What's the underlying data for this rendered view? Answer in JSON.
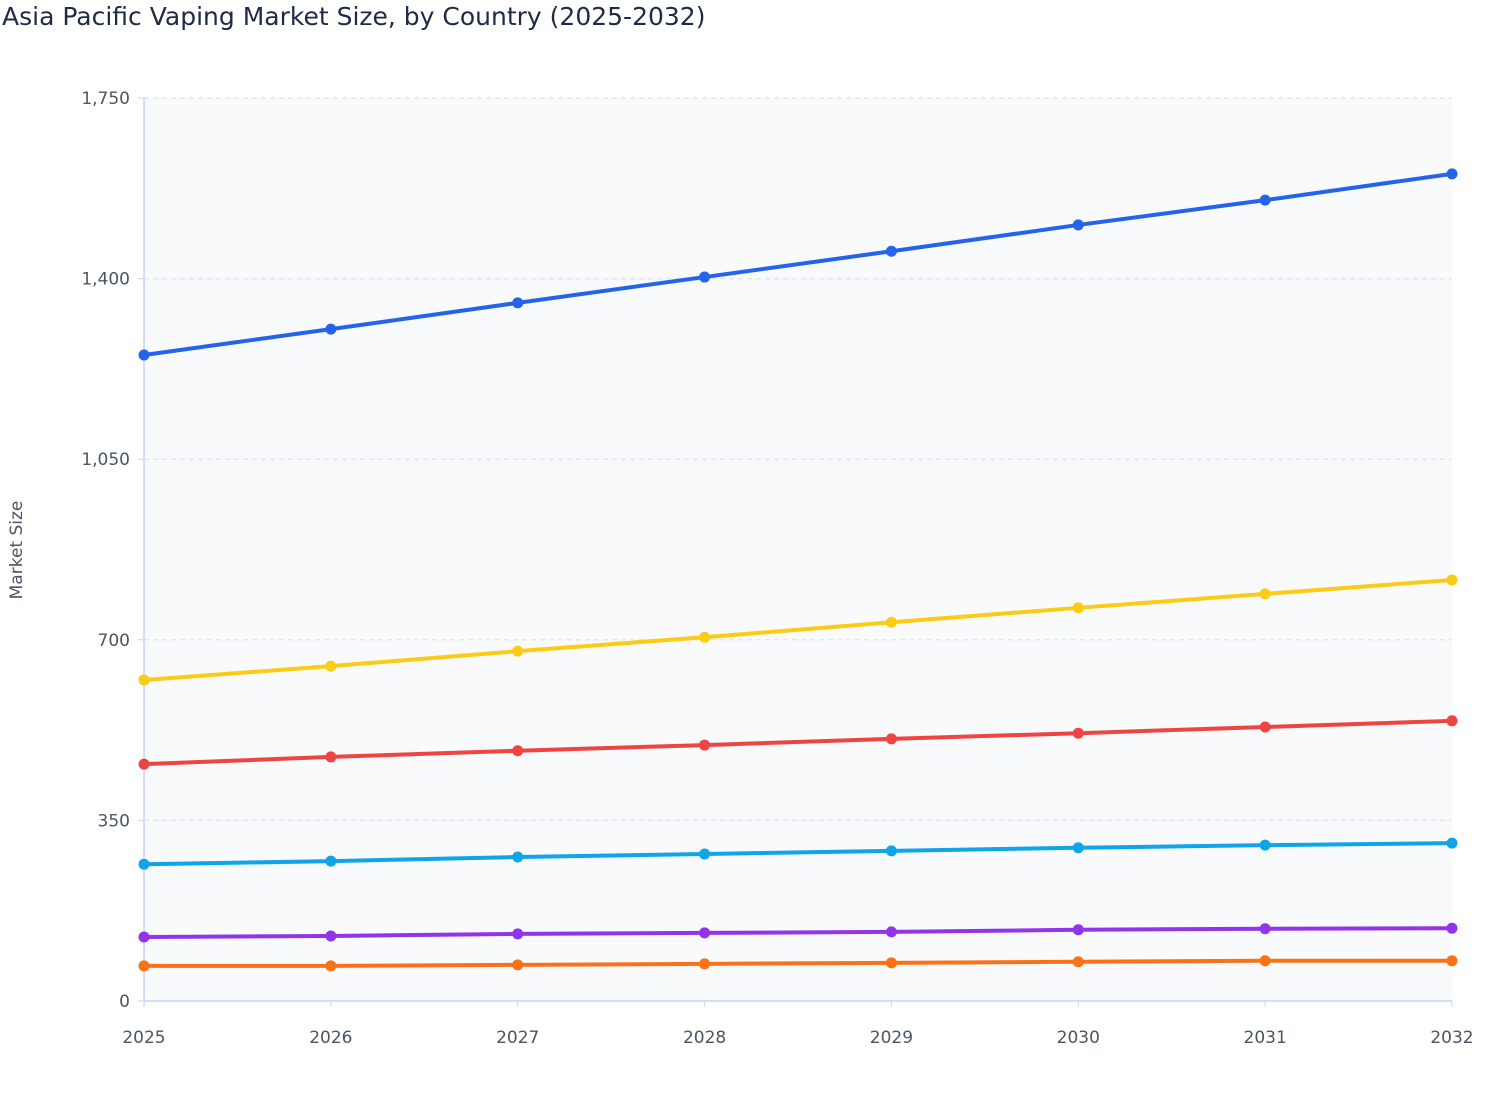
{
  "chart_data": {
    "type": "line",
    "title": "Asia Pacific Vaping Market Size, by Country (2025-2032)",
    "xlabel": "",
    "ylabel": "Market Size",
    "x": [
      "2025",
      "2026",
      "2027",
      "2028",
      "2029",
      "2030",
      "2031",
      "2032"
    ],
    "ylim": [
      0,
      1750
    ],
    "yticks": [
      0,
      350,
      700,
      1050,
      1400,
      1750
    ],
    "ytick_labels": [
      "0",
      "350",
      "700",
      "1,050",
      "1,400",
      "1,750"
    ],
    "grid": true,
    "legend": "none",
    "series": [
      {
        "color": "#2563eb",
        "values": [
          1252,
          1302,
          1353,
          1403,
          1453,
          1504,
          1552,
          1603
        ]
      },
      {
        "color": "#facc15",
        "values": [
          622,
          649,
          678,
          705,
          734,
          762,
          789,
          816
        ]
      },
      {
        "color": "#ef4444",
        "values": [
          459,
          473,
          485,
          496,
          508,
          519,
          531,
          543
        ]
      },
      {
        "color": "#0ea5e9",
        "values": [
          265,
          271,
          279,
          285,
          291,
          297,
          302,
          306
        ]
      },
      {
        "color": "#9333ea",
        "values": [
          124,
          126,
          130,
          132,
          134,
          138,
          140,
          141
        ]
      },
      {
        "color": "#f97316",
        "values": [
          68,
          68,
          70,
          72,
          74,
          76,
          78,
          78
        ]
      }
    ]
  }
}
